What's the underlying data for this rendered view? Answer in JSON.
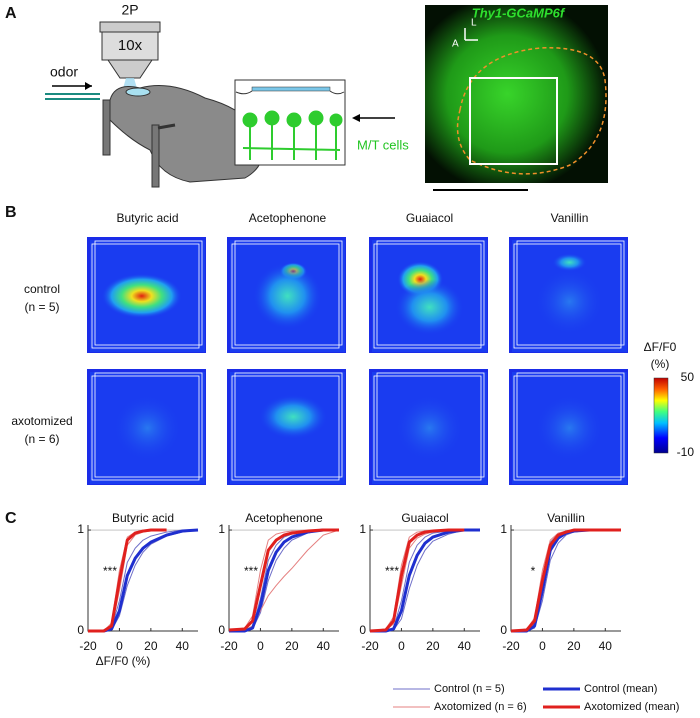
{
  "panel_a": {
    "label": "A",
    "microscope": "2P",
    "objective": "10x",
    "stimulus": "odor",
    "cells": "M/T cells",
    "image_title": "Thy1-GCaMP6f",
    "axis_lateral": "L",
    "axis_anterior": "A"
  },
  "panel_b": {
    "label": "B",
    "columns": [
      "Butyric acid",
      "Acetophenone",
      "Guaiacol",
      "Vanillin"
    ],
    "rows": [
      {
        "name": "control",
        "n": "(n = 5)"
      },
      {
        "name": "axotomized",
        "n": "(n = 6)"
      }
    ],
    "colorbar": {
      "label": "ΔF/F0",
      "unit": "(%)",
      "ticks": [
        50,
        -10
      ]
    }
  },
  "panel_c_label": "C",
  "chart_data": [
    {
      "type": "line",
      "title": "Butyric acid",
      "xlabel": "ΔF/F0 (%)",
      "annotation": "***",
      "x": [
        -20,
        -10,
        -5,
        0,
        5,
        10,
        15,
        20,
        30,
        40,
        50
      ],
      "xlim": [
        -20,
        50
      ],
      "ylim": [
        0,
        1.05
      ],
      "xticks": [
        -20,
        0,
        20,
        40
      ],
      "yticks": [
        0,
        1
      ],
      "series": [
        {
          "name": "Control (n = 5)",
          "color": "#6f6fc8",
          "width": 1,
          "values": [
            0,
            0,
            0.01,
            0.15,
            0.45,
            0.65,
            0.78,
            0.86,
            0.94,
            0.98,
            1
          ]
        },
        {
          "name": "Control (n = 5)",
          "color": "#6f6fc8",
          "width": 1,
          "values": [
            0,
            0,
            0.03,
            0.3,
            0.68,
            0.82,
            0.9,
            0.94,
            0.98,
            1,
            1
          ]
        },
        {
          "name": "Axotomized (n = 6)",
          "color": "#e58080",
          "width": 1,
          "values": [
            0,
            0,
            0.08,
            0.6,
            0.93,
            0.98,
            1,
            1,
            1,
            null,
            null
          ]
        },
        {
          "name": "Axotomized (n = 6)",
          "color": "#e58080",
          "width": 1,
          "values": [
            0,
            0,
            0.03,
            0.4,
            0.85,
            0.95,
            0.98,
            0.99,
            1,
            null,
            null
          ]
        },
        {
          "name": "Control (mean)",
          "color": "#1f2fcf",
          "width": 3,
          "values": [
            0,
            0,
            0.02,
            0.2,
            0.55,
            0.72,
            0.82,
            0.88,
            0.95,
            0.99,
            1
          ]
        },
        {
          "name": "Axotomized (mean)",
          "color": "#e0201e",
          "width": 3,
          "values": [
            0,
            0,
            0.05,
            0.5,
            0.9,
            0.97,
            0.99,
            1,
            1,
            null,
            null
          ]
        }
      ]
    },
    {
      "type": "line",
      "title": "Acetophenone",
      "annotation": "***",
      "x": [
        -20,
        -10,
        -5,
        0,
        5,
        10,
        15,
        20,
        30,
        40,
        50
      ],
      "xlim": [
        -20,
        50
      ],
      "ylim": [
        0,
        1.05
      ],
      "xticks": [
        -20,
        0,
        20,
        40
      ],
      "yticks": [
        0,
        1
      ],
      "series": [
        {
          "name": "Control (n = 5)",
          "color": "#6f6fc8",
          "width": 1,
          "values": [
            0,
            0,
            0.02,
            0.18,
            0.5,
            0.7,
            0.82,
            0.9,
            0.97,
            1,
            1
          ]
        },
        {
          "name": "Control (n = 5)",
          "color": "#6f6fc8",
          "width": 1,
          "values": [
            0,
            0,
            0.04,
            0.32,
            0.7,
            0.85,
            0.93,
            0.96,
            0.99,
            1,
            1
          ]
        },
        {
          "name": "Axotomized (n = 6)",
          "color": "#e58080",
          "width": 1,
          "values": [
            0,
            0.01,
            0.05,
            0.2,
            0.35,
            0.45,
            0.54,
            0.62,
            0.8,
            0.95,
            1
          ]
        },
        {
          "name": "Axotomized (n = 6)",
          "color": "#e58080",
          "width": 1,
          "values": [
            0.01,
            0.03,
            0.15,
            0.6,
            0.9,
            0.96,
            0.98,
            0.99,
            1,
            1,
            1
          ]
        },
        {
          "name": "Control (mean)",
          "color": "#1f2fcf",
          "width": 3,
          "values": [
            0,
            0,
            0.03,
            0.25,
            0.6,
            0.78,
            0.88,
            0.93,
            0.98,
            1,
            1
          ]
        },
        {
          "name": "Axotomized (mean)",
          "color": "#e0201e",
          "width": 3,
          "values": [
            0.01,
            0.02,
            0.1,
            0.45,
            0.8,
            0.9,
            0.95,
            0.97,
            0.99,
            1,
            1
          ]
        }
      ]
    },
    {
      "type": "line",
      "title": "Guaiacol",
      "annotation": "***",
      "x": [
        -20,
        -10,
        -5,
        0,
        5,
        10,
        15,
        20,
        30,
        40,
        50
      ],
      "xlim": [
        -20,
        50
      ],
      "ylim": [
        0,
        1.05
      ],
      "xticks": [
        -20,
        0,
        20,
        40
      ],
      "yticks": [
        0,
        1
      ],
      "series": [
        {
          "name": "Control (n = 5)",
          "color": "#6f6fc8",
          "width": 1,
          "values": [
            0,
            0,
            0.01,
            0.12,
            0.42,
            0.65,
            0.8,
            0.89,
            0.96,
            1,
            1
          ]
        },
        {
          "name": "Control (n = 5)",
          "color": "#6f6fc8",
          "width": 1,
          "values": [
            0,
            0,
            0.03,
            0.3,
            0.68,
            0.85,
            0.93,
            0.97,
            0.99,
            1,
            1
          ]
        },
        {
          "name": "Axotomized (n = 6)",
          "color": "#e58080",
          "width": 1,
          "values": [
            0,
            0.01,
            0.07,
            0.45,
            0.82,
            0.92,
            0.96,
            0.98,
            1,
            1,
            null
          ]
        },
        {
          "name": "Axotomized (n = 6)",
          "color": "#e58080",
          "width": 1,
          "values": [
            0,
            0.02,
            0.14,
            0.65,
            0.93,
            0.98,
            0.99,
            1,
            1,
            1,
            null
          ]
        },
        {
          "name": "Control (mean)",
          "color": "#1f2fcf",
          "width": 3,
          "values": [
            0,
            0,
            0.02,
            0.2,
            0.55,
            0.75,
            0.87,
            0.93,
            0.98,
            1,
            1
          ]
        },
        {
          "name": "Axotomized (mean)",
          "color": "#e0201e",
          "width": 3,
          "values": [
            0,
            0.01,
            0.1,
            0.55,
            0.88,
            0.95,
            0.98,
            0.99,
            1,
            1,
            null
          ]
        }
      ]
    },
    {
      "type": "line",
      "title": "Vanillin",
      "annotation": "*",
      "x": [
        -20,
        -10,
        -5,
        0,
        5,
        10,
        15,
        20,
        30,
        40,
        50
      ],
      "xlim": [
        -20,
        50
      ],
      "ylim": [
        0,
        1.05
      ],
      "xticks": [
        -20,
        0,
        20,
        40
      ],
      "yticks": [
        0,
        1
      ],
      "series": [
        {
          "name": "Control (n = 5)",
          "color": "#6f6fc8",
          "width": 1,
          "values": [
            0,
            0,
            0.03,
            0.3,
            0.7,
            0.87,
            0.95,
            0.98,
            1,
            1,
            1
          ]
        },
        {
          "name": "Control (n = 5)",
          "color": "#6f6fc8",
          "width": 1,
          "values": [
            0,
            0,
            0.06,
            0.5,
            0.88,
            0.96,
            0.99,
            1,
            1,
            1,
            1
          ]
        },
        {
          "name": "Axotomized (n = 6)",
          "color": "#e58080",
          "width": 1,
          "values": [
            0,
            0.01,
            0.08,
            0.42,
            0.78,
            0.91,
            0.96,
            0.98,
            1,
            1,
            1
          ]
        },
        {
          "name": "Axotomized (n = 6)",
          "color": "#e58080",
          "width": 1,
          "values": [
            0,
            0.02,
            0.13,
            0.6,
            0.9,
            0.97,
            0.99,
            1,
            1,
            1,
            1
          ]
        },
        {
          "name": "Control (mean)",
          "color": "#1f2fcf",
          "width": 3,
          "values": [
            0,
            0,
            0.05,
            0.4,
            0.8,
            0.92,
            0.97,
            0.99,
            1,
            1,
            1
          ]
        },
        {
          "name": "Axotomized (mean)",
          "color": "#e0201e",
          "width": 3,
          "values": [
            0,
            0.01,
            0.1,
            0.5,
            0.85,
            0.95,
            0.98,
            1,
            1,
            1,
            1
          ]
        }
      ]
    }
  ]
}
